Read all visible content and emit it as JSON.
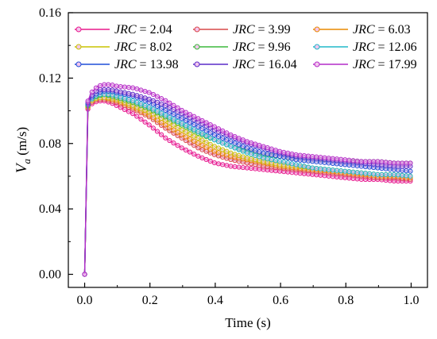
{
  "chart_data": {
    "type": "line",
    "xlabel": "Time (s)",
    "ylabel_symbol": "V",
    "ylabel_subscript": "a",
    "ylabel_unit": "(m/s)",
    "xlim": [
      -0.05,
      1.05
    ],
    "ylim": [
      -0.008,
      0.16
    ],
    "xticks": [
      0.0,
      0.2,
      0.4,
      0.6,
      0.8,
      1.0
    ],
    "xtick_labels": [
      "0.0",
      "0.2",
      "0.4",
      "0.6",
      "0.8",
      "1.0"
    ],
    "yticks": [
      0.0,
      0.04,
      0.08,
      0.12,
      0.16
    ],
    "ytick_labels": [
      "0.00",
      "0.04",
      "0.08",
      "0.12",
      "0.16"
    ],
    "grid": false,
    "legend_placement": "top",
    "legend_prefix": "JRC",
    "x": [
      0.0,
      0.01,
      0.02,
      0.04,
      0.06,
      0.08,
      0.1,
      0.15,
      0.2,
      0.25,
      0.3,
      0.35,
      0.4,
      0.45,
      0.5,
      0.55,
      0.6,
      0.65,
      0.7,
      0.75,
      0.8,
      0.85,
      0.9,
      0.95,
      1.0
    ],
    "series": [
      {
        "name": "JRC = 2.04",
        "color": "#e8198c",
        "values": [
          0.0,
          0.101,
          0.104,
          0.106,
          0.106,
          0.105,
          0.103,
          0.098,
          0.091,
          0.083,
          0.077,
          0.072,
          0.068,
          0.066,
          0.065,
          0.064,
          0.063,
          0.062,
          0.061,
          0.06,
          0.059,
          0.058,
          0.058,
          0.057,
          0.057
        ]
      },
      {
        "name": "JRC = 3.99",
        "color": "#d94848",
        "values": [
          0.0,
          0.102,
          0.105,
          0.107,
          0.107,
          0.106,
          0.105,
          0.101,
          0.096,
          0.089,
          0.083,
          0.077,
          0.073,
          0.07,
          0.068,
          0.066,
          0.065,
          0.064,
          0.063,
          0.062,
          0.061,
          0.06,
          0.059,
          0.059,
          0.058
        ]
      },
      {
        "name": "JRC = 6.03",
        "color": "#e88a00",
        "values": [
          0.0,
          0.102,
          0.106,
          0.108,
          0.108,
          0.107,
          0.106,
          0.102,
          0.097,
          0.091,
          0.085,
          0.08,
          0.075,
          0.072,
          0.07,
          0.068,
          0.066,
          0.065,
          0.064,
          0.063,
          0.062,
          0.061,
          0.06,
          0.06,
          0.059
        ]
      },
      {
        "name": "JRC = 8.02",
        "color": "#c8c400",
        "values": [
          0.0,
          0.103,
          0.106,
          0.108,
          0.108,
          0.108,
          0.107,
          0.103,
          0.099,
          0.094,
          0.088,
          0.083,
          0.078,
          0.074,
          0.071,
          0.069,
          0.067,
          0.066,
          0.065,
          0.064,
          0.063,
          0.062,
          0.061,
          0.061,
          0.06
        ]
      },
      {
        "name": "JRC = 9.96",
        "color": "#3cb83c",
        "values": [
          0.0,
          0.103,
          0.107,
          0.109,
          0.11,
          0.109,
          0.108,
          0.105,
          0.101,
          0.096,
          0.091,
          0.086,
          0.082,
          0.078,
          0.075,
          0.073,
          0.072,
          0.071,
          0.07,
          0.07,
          0.069,
          0.069,
          0.069,
          0.068,
          0.068
        ]
      },
      {
        "name": "JRC = 12.06",
        "color": "#20b8c8",
        "values": [
          0.0,
          0.104,
          0.107,
          0.11,
          0.11,
          0.11,
          0.109,
          0.106,
          0.102,
          0.097,
          0.092,
          0.087,
          0.082,
          0.078,
          0.074,
          0.071,
          0.069,
          0.067,
          0.065,
          0.064,
          0.063,
          0.062,
          0.061,
          0.061,
          0.06
        ]
      },
      {
        "name": "JRC = 13.98",
        "color": "#1f4ed8",
        "values": [
          0.0,
          0.104,
          0.108,
          0.111,
          0.112,
          0.112,
          0.111,
          0.109,
          0.105,
          0.1,
          0.095,
          0.09,
          0.085,
          0.081,
          0.077,
          0.074,
          0.072,
          0.07,
          0.069,
          0.068,
          0.067,
          0.066,
          0.065,
          0.064,
          0.063
        ]
      },
      {
        "name": "JRC = 16.04",
        "color": "#5a2cc8",
        "values": [
          0.0,
          0.105,
          0.109,
          0.113,
          0.113,
          0.113,
          0.112,
          0.11,
          0.107,
          0.103,
          0.098,
          0.093,
          0.088,
          0.084,
          0.08,
          0.077,
          0.074,
          0.072,
          0.071,
          0.07,
          0.069,
          0.068,
          0.067,
          0.066,
          0.066
        ]
      },
      {
        "name": "JRC = 17.99",
        "color": "#b42cc8",
        "values": [
          0.0,
          0.106,
          0.111,
          0.115,
          0.116,
          0.116,
          0.115,
          0.114,
          0.111,
          0.106,
          0.1,
          0.095,
          0.09,
          0.085,
          0.081,
          0.078,
          0.075,
          0.073,
          0.072,
          0.071,
          0.07,
          0.069,
          0.069,
          0.068,
          0.068
        ]
      }
    ]
  }
}
